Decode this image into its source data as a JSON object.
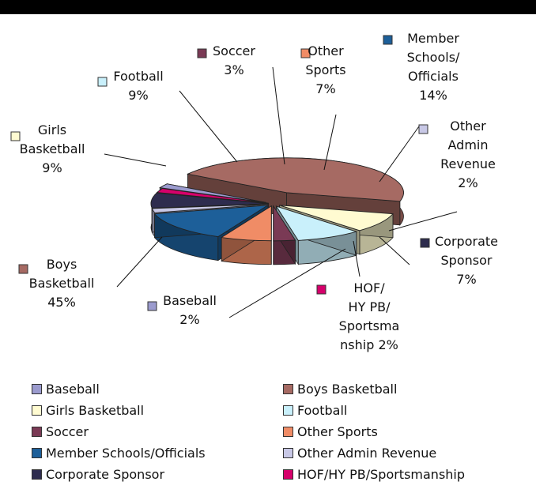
{
  "chart_data": {
    "type": "pie",
    "style": "3d-exploded",
    "slices": [
      {
        "key": "baseball",
        "name": "Baseball",
        "value": 2,
        "color": "#9b9bce",
        "label_lines": [
          "Baseball",
          "2%"
        ]
      },
      {
        "key": "boys",
        "name": "Boys Basketball",
        "value": 45,
        "color": "#a66a63",
        "label_lines": [
          "Boys",
          "Basketball",
          "45%"
        ]
      },
      {
        "key": "girls",
        "name": "Girls Basketball",
        "value": 9,
        "color": "#fffbd1",
        "label_lines": [
          "Girls",
          "Basketball",
          "9%"
        ]
      },
      {
        "key": "football",
        "name": "Football",
        "value": 9,
        "color": "#c9f0fb",
        "label_lines": [
          "Football",
          "9%"
        ]
      },
      {
        "key": "soccer",
        "name": "Soccer",
        "value": 3,
        "color": "#7a3a55",
        "label_lines": [
          "Soccer",
          "3%"
        ]
      },
      {
        "key": "other_sports",
        "name": "Other Sports",
        "value": 7,
        "color": "#f08c66",
        "label_lines": [
          "Other",
          "Sports",
          "7%"
        ]
      },
      {
        "key": "member",
        "name": "Member Schools/Officials",
        "value": 14,
        "color": "#1d5f99",
        "label_lines": [
          "Member",
          "Schools/",
          "Officials",
          "14%"
        ]
      },
      {
        "key": "other_admin",
        "name": "Other Admin Revenue",
        "value": 2,
        "color": "#c8c8e6",
        "label_lines": [
          "Other",
          "Admin",
          "Revenue",
          "2%"
        ]
      },
      {
        "key": "corporate",
        "name": "Corporate Sponsor",
        "value": 7,
        "color": "#2e2c4e",
        "label_lines": [
          "Corporate",
          "Sponsor",
          "7%"
        ]
      },
      {
        "key": "hof",
        "name": "HOF/HY PB/Sportsmanship",
        "value": 2,
        "color": "#d6006b",
        "label_lines": [
          "HOF/",
          "HY PB/",
          "Sportsma",
          "nship 2%"
        ]
      }
    ]
  },
  "legend": {
    "items": [
      {
        "label": "Baseball",
        "color": "#9b9bce"
      },
      {
        "label": "Boys Basketball",
        "color": "#a66a63"
      },
      {
        "label": "Girls Basketball",
        "color": "#fffbd1"
      },
      {
        "label": "Football",
        "color": "#c9f0fb"
      },
      {
        "label": "Soccer",
        "color": "#7a3a55"
      },
      {
        "label": "Other Sports",
        "color": "#f08c66"
      },
      {
        "label": "Member Schools/Officials",
        "color": "#1d5f99"
      },
      {
        "label": "Other Admin Revenue",
        "color": "#c8c8e6"
      },
      {
        "label": "Corporate Sponsor",
        "color": "#2e2c4e"
      },
      {
        "label": "HOF/HY PB/Sportsmanship",
        "color": "#d6006b"
      }
    ]
  }
}
